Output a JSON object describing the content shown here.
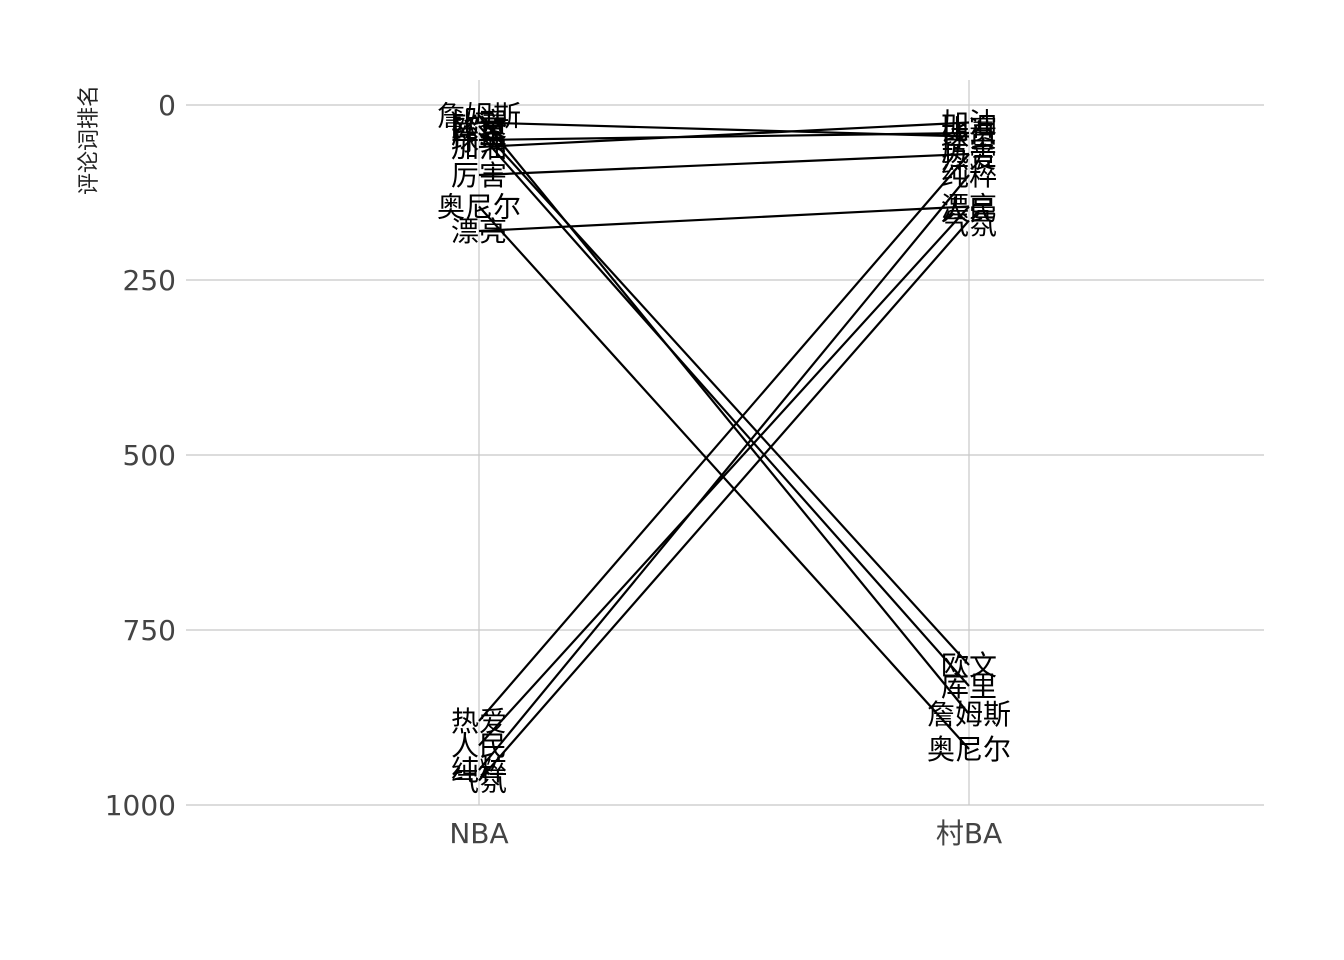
{
  "chart_data": {
    "type": "line",
    "subtype": "slope",
    "title": "",
    "xlabel": "",
    "ylabel": "评论词排名",
    "categories": [
      "NBA",
      "村BA"
    ],
    "ylim": [
      0,
      1000
    ],
    "y_inverted": true,
    "yticks": [
      0,
      250,
      500,
      750,
      1000
    ],
    "grid": true,
    "line_color": "#000000",
    "series": [
      {
        "name": "詹姆斯",
        "values": [
          15,
          870
        ]
      },
      {
        "name": "比赛",
        "values": [
          25,
          45
        ]
      },
      {
        "name": "欧文",
        "values": [
          30,
          800
        ]
      },
      {
        "name": "库里",
        "values": [
          40,
          830
        ]
      },
      {
        "name": "球员",
        "values": [
          50,
          40
        ]
      },
      {
        "name": "加油",
        "values": [
          60,
          25
        ]
      },
      {
        "name": "厉害",
        "values": [
          100,
          70
        ]
      },
      {
        "name": "奥尼尔",
        "values": [
          145,
          920
        ]
      },
      {
        "name": "漂亮",
        "values": [
          180,
          145
        ]
      },
      {
        "name": "热爱",
        "values": [
          880,
          70
        ]
      },
      {
        "name": "人民",
        "values": [
          915,
          145
        ]
      },
      {
        "name": "纯粹",
        "values": [
          950,
          100
        ]
      },
      {
        "name": "气氛",
        "values": [
          965,
          165
        ]
      }
    ],
    "right_labels": [
      {
        "text": "加油",
        "value": 25
      },
      {
        "text": "比赛",
        "value": 35
      },
      {
        "text": "球员",
        "value": 45
      },
      {
        "text": "厉害",
        "value": 65
      },
      {
        "text": "热爱",
        "value": 75
      },
      {
        "text": "纯粹",
        "value": 100
      },
      {
        "text": "漂亮",
        "value": 145
      },
      {
        "text": "人民",
        "value": 150
      },
      {
        "text": "气氛",
        "value": 170
      },
      {
        "text": "欧文",
        "value": 800
      },
      {
        "text": "库里",
        "value": 830
      },
      {
        "text": "詹姆斯",
        "value": 870
      },
      {
        "text": "奥尼尔",
        "value": 920
      }
    ]
  }
}
